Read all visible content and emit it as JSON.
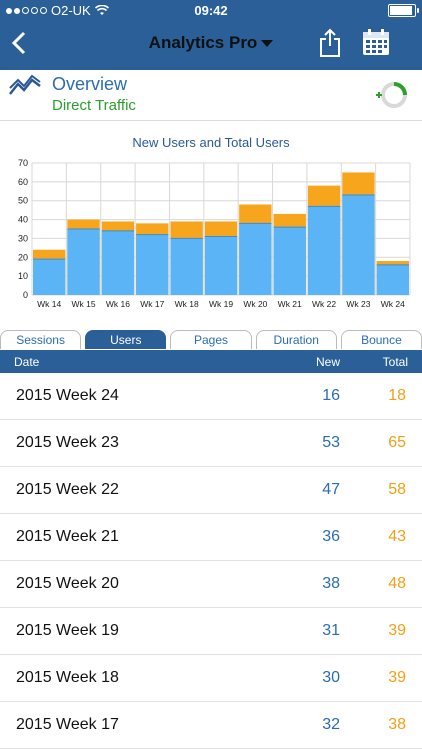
{
  "status_bar": {
    "carrier": "O2-UK",
    "time": "09:42"
  },
  "nav": {
    "title": "Analytics Pro"
  },
  "overview": {
    "title": "Overview",
    "subtitle": "Direct Traffic"
  },
  "chart_data": {
    "type": "bar",
    "title": "New Users and Total Users",
    "categories": [
      "Wk 14",
      "Wk 15",
      "Wk 16",
      "Wk 17",
      "Wk 18",
      "Wk 19",
      "Wk 20",
      "Wk 21",
      "Wk 22",
      "Wk 23",
      "Wk 24"
    ],
    "series": [
      {
        "values": [
          19,
          35,
          34,
          32,
          30,
          31,
          38,
          36,
          47,
          53,
          16
        ],
        "color": "#5ab4f5"
      },
      {
        "values": [
          24,
          40,
          39,
          38,
          39,
          39,
          48,
          43,
          58,
          65,
          18
        ],
        "color": "#f7a51d"
      }
    ],
    "ylim": [
      0,
      70
    ],
    "yticks": [
      0,
      10,
      20,
      30,
      40,
      50,
      60,
      70
    ],
    "grid": true
  },
  "tabs": [
    {
      "label": "Sessions",
      "active": false
    },
    {
      "label": "Users",
      "active": true
    },
    {
      "label": "Pages",
      "active": false
    },
    {
      "label": "Duration",
      "active": false
    },
    {
      "label": "Bounce",
      "active": false
    }
  ],
  "table": {
    "headers": {
      "date": "Date",
      "new": "New",
      "total": "Total"
    },
    "rows": [
      {
        "date": "2015 Week 24",
        "new": "16",
        "total": "18"
      },
      {
        "date": "2015 Week 23",
        "new": "53",
        "total": "65"
      },
      {
        "date": "2015 Week 22",
        "new": "47",
        "total": "58"
      },
      {
        "date": "2015 Week 21",
        "new": "36",
        "total": "43"
      },
      {
        "date": "2015 Week 20",
        "new": "38",
        "total": "48"
      },
      {
        "date": "2015 Week 19",
        "new": "31",
        "total": "39"
      },
      {
        "date": "2015 Week 18",
        "new": "30",
        "total": "39"
      },
      {
        "date": "2015 Week 17",
        "new": "32",
        "total": "38"
      }
    ]
  },
  "colors": {
    "nav_bg": "#2b5f98",
    "new_blue": "#2a6db0",
    "total_orange": "#f2a014",
    "accent_green": "#2ba02b"
  }
}
